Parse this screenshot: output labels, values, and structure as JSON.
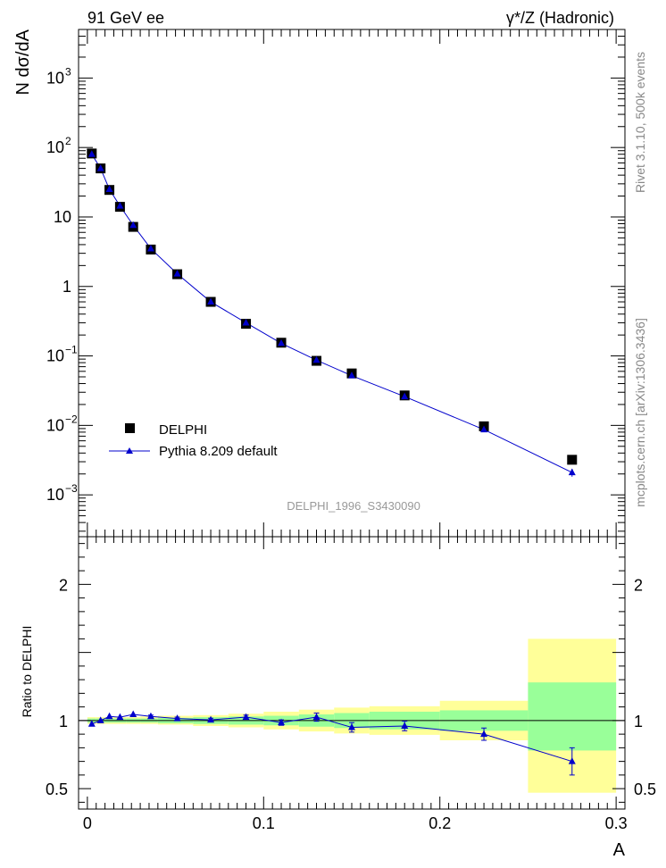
{
  "header": {
    "left_title": "91 GeV ee",
    "right_title": "γ*/Z (Hadronic)"
  },
  "side_labels": {
    "rivet": "Rivet 3.1.10,  500k events",
    "mcplots": "mcplots.cern.ch [arXiv:1306.3436]"
  },
  "analysis_id": "DELPHI_1996_S3430090",
  "colors": {
    "data": "#000000",
    "mc": "#0000cc",
    "band_inner": "#99ff99",
    "band_outer": "#ffff99",
    "ref_line": "#000000"
  },
  "chart_data": [
    {
      "type": "scatter",
      "panel": "main",
      "ylabel": "N dσ/dA",
      "yscale": "log",
      "ylim": [
        0.00025,
        5000
      ],
      "xlim": [
        -0.005,
        0.305
      ],
      "y_ticks": [
        {
          "value": 0.001,
          "base": "10",
          "exp": "−3"
        },
        {
          "value": 0.01,
          "base": "10",
          "exp": "−2"
        },
        {
          "value": 0.1,
          "base": "10",
          "exp": "−1"
        },
        {
          "value": 1,
          "base": "1",
          "exp": ""
        },
        {
          "value": 10,
          "base": "10",
          "exp": ""
        },
        {
          "value": 100,
          "base": "10",
          "exp": "2"
        },
        {
          "value": 1000,
          "base": "10",
          "exp": "3"
        }
      ],
      "legend": {
        "placement": "bottom-left"
      },
      "series": [
        {
          "name": "DELPHI",
          "marker": "square",
          "x": [
            0.0025,
            0.0075,
            0.0125,
            0.0185,
            0.026,
            0.036,
            0.051,
            0.07,
            0.09,
            0.11,
            0.13,
            0.15,
            0.18,
            0.225,
            0.275
          ],
          "y": [
            82,
            50,
            24.5,
            14,
            7.2,
            3.4,
            1.5,
            0.6,
            0.29,
            0.155,
            0.085,
            0.056,
            0.027,
            0.0097,
            0.0032
          ]
        },
        {
          "name": "Pythia 8.209 default",
          "marker": "triangle",
          "x": [
            0.0025,
            0.0075,
            0.0125,
            0.0185,
            0.026,
            0.036,
            0.051,
            0.07,
            0.09,
            0.11,
            0.13,
            0.15,
            0.18,
            0.225,
            0.275
          ],
          "y": [
            80,
            50,
            25,
            14.4,
            7.6,
            3.5,
            1.52,
            0.6,
            0.3,
            0.152,
            0.087,
            0.052,
            0.026,
            0.0087,
            0.0021
          ],
          "yerr_rel": [
            0.005,
            0.005,
            0.006,
            0.007,
            0.008,
            0.01,
            0.01,
            0.012,
            0.015,
            0.02,
            0.03,
            0.035,
            0.035,
            0.045,
            0.13
          ]
        }
      ]
    },
    {
      "type": "line",
      "panel": "ratio",
      "ylabel": "Ratio to DELPHI",
      "xlabel": "A",
      "ylim": [
        0.35,
        2.35
      ],
      "xlim": [
        -0.005,
        0.305
      ],
      "x_ticks": [
        {
          "value": 0,
          "label": "0"
        },
        {
          "value": 0.1,
          "label": "0.1"
        },
        {
          "value": 0.2,
          "label": "0.2"
        },
        {
          "value": 0.3,
          "label": "0.3"
        }
      ],
      "y_ticks": [
        {
          "value": 0.5,
          "label": "0.5"
        },
        {
          "value": 1,
          "label": "1"
        },
        {
          "value": 2,
          "label": "2"
        }
      ],
      "bands": [
        {
          "x0": 0,
          "x1": 0.005,
          "inner": [
            0.985,
            1.015
          ],
          "outer": [
            0.975,
            1.025
          ]
        },
        {
          "x0": 0.005,
          "x1": 0.01,
          "inner": [
            0.985,
            1.015
          ],
          "outer": [
            0.975,
            1.025
          ]
        },
        {
          "x0": 0.01,
          "x1": 0.015,
          "inner": [
            0.985,
            1.015
          ],
          "outer": [
            0.975,
            1.025
          ]
        },
        {
          "x0": 0.015,
          "x1": 0.022,
          "inner": [
            0.985,
            1.015
          ],
          "outer": [
            0.975,
            1.025
          ]
        },
        {
          "x0": 0.022,
          "x1": 0.03,
          "inner": [
            0.985,
            1.015
          ],
          "outer": [
            0.975,
            1.025
          ]
        },
        {
          "x0": 0.03,
          "x1": 0.04,
          "inner": [
            0.985,
            1.015
          ],
          "outer": [
            0.975,
            1.03
          ]
        },
        {
          "x0": 0.04,
          "x1": 0.06,
          "inner": [
            0.98,
            1.02
          ],
          "outer": [
            0.97,
            1.035
          ]
        },
        {
          "x0": 0.06,
          "x1": 0.08,
          "inner": [
            0.975,
            1.025
          ],
          "outer": [
            0.96,
            1.04
          ]
        },
        {
          "x0": 0.08,
          "x1": 0.1,
          "inner": [
            0.97,
            1.03
          ],
          "outer": [
            0.95,
            1.05
          ]
        },
        {
          "x0": 0.1,
          "x1": 0.12,
          "inner": [
            0.965,
            1.035
          ],
          "outer": [
            0.935,
            1.065
          ]
        },
        {
          "x0": 0.12,
          "x1": 0.14,
          "inner": [
            0.955,
            1.045
          ],
          "outer": [
            0.92,
            1.08
          ]
        },
        {
          "x0": 0.14,
          "x1": 0.16,
          "inner": [
            0.945,
            1.055
          ],
          "outer": [
            0.905,
            1.095
          ]
        },
        {
          "x0": 0.16,
          "x1": 0.2,
          "inner": [
            0.935,
            1.065
          ],
          "outer": [
            0.895,
            1.105
          ]
        },
        {
          "x0": 0.2,
          "x1": 0.25,
          "inner": [
            0.925,
            1.075
          ],
          "outer": [
            0.855,
            1.145
          ]
        },
        {
          "x0": 0.25,
          "x1": 0.3,
          "inner": [
            0.78,
            1.28
          ],
          "outer": [
            0.47,
            1.6
          ]
        }
      ],
      "series": [
        {
          "name": "Pythia 8.209 default",
          "x": [
            0.0025,
            0.0075,
            0.0125,
            0.0185,
            0.026,
            0.036,
            0.051,
            0.07,
            0.09,
            0.11,
            0.13,
            0.15,
            0.18,
            0.225,
            0.275
          ],
          "y": [
            0.975,
            1.0,
            1.03,
            1.025,
            1.045,
            1.03,
            1.015,
            1.005,
            1.025,
            0.985,
            1.025,
            0.95,
            0.96,
            0.9,
            0.7
          ],
          "yerr": [
            0.005,
            0.005,
            0.007,
            0.008,
            0.009,
            0.01,
            0.01,
            0.012,
            0.015,
            0.02,
            0.03,
            0.035,
            0.035,
            0.045,
            0.1
          ]
        }
      ]
    }
  ]
}
